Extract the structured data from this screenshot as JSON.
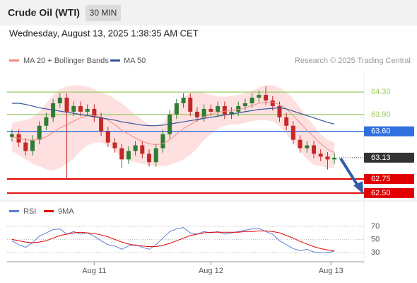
{
  "header": {
    "title": "Crude Oil (WTI)",
    "timeframe": "30 MIN",
    "date": "Wednesday, August 13, 2025 1:38:35 AM CET",
    "credit": "Research © 2025 Trading Central"
  },
  "chart_data": [
    {
      "type": "candlestick",
      "open": [
        63.5,
        63.55,
        63.4,
        63.25,
        63.45,
        63.7,
        63.85,
        64.1,
        64.2,
        63.95,
        64.05,
        63.95,
        64.0,
        63.85,
        63.6,
        63.4,
        63.3,
        63.1,
        63.25,
        63.35,
        63.2,
        63.05,
        63.3,
        63.55,
        63.9,
        64.1,
        64.2,
        63.95,
        63.85,
        64.0,
        63.95,
        64.05,
        63.9,
        63.95,
        64.05,
        64.1,
        64.2,
        64.25,
        64.15,
        64.05,
        63.85,
        63.7,
        63.45,
        63.3,
        63.35,
        63.2,
        63.15,
        63.1
      ],
      "high": [
        63.63,
        63.63,
        63.48,
        63.53,
        63.78,
        63.93,
        64.18,
        64.28,
        64.28,
        64.13,
        64.13,
        64.08,
        64.08,
        63.93,
        63.68,
        63.48,
        63.38,
        63.33,
        63.43,
        63.43,
        63.28,
        63.38,
        63.63,
        63.98,
        64.18,
        64.28,
        64.28,
        64.03,
        64.08,
        64.08,
        64.13,
        64.13,
        64.03,
        64.13,
        64.18,
        64.28,
        64.33,
        64.4,
        64.23,
        64.13,
        63.93,
        63.78,
        63.53,
        63.43,
        63.43,
        63.28,
        63.23,
        63.21
      ],
      "low": [
        63.42,
        63.32,
        63.17,
        63.17,
        63.37,
        63.62,
        63.77,
        64.02,
        62.75,
        63.87,
        63.87,
        63.87,
        63.77,
        63.52,
        63.32,
        63.22,
        62.95,
        63.02,
        63.17,
        63.12,
        62.97,
        62.97,
        63.22,
        63.47,
        63.82,
        64.02,
        63.87,
        63.77,
        63.77,
        63.87,
        63.87,
        63.82,
        63.82,
        63.87,
        63.97,
        64.02,
        64.12,
        64.07,
        63.97,
        63.77,
        63.62,
        63.37,
        63.22,
        63.22,
        63.12,
        63.07,
        62.92,
        63.02
      ],
      "close": [
        63.55,
        63.4,
        63.25,
        63.45,
        63.7,
        63.85,
        64.1,
        64.2,
        63.95,
        64.05,
        63.95,
        64.0,
        63.85,
        63.6,
        63.4,
        63.3,
        63.1,
        63.25,
        63.35,
        63.2,
        63.05,
        63.3,
        63.55,
        63.9,
        64.1,
        64.2,
        63.95,
        63.85,
        64.0,
        63.95,
        64.05,
        63.9,
        63.95,
        64.05,
        64.1,
        64.2,
        64.25,
        64.15,
        64.05,
        63.85,
        63.7,
        63.45,
        63.3,
        63.35,
        63.2,
        63.15,
        63.1,
        63.13
      ],
      "up_color": "#2e7d32",
      "down_color": "#c62828",
      "series": [
        {
          "name": "MA 20 + Bollinger Bands",
          "color": "#f28b82",
          "band_color": "#fde0df",
          "values": [
            63.5,
            63.48,
            63.45,
            63.44,
            63.46,
            63.5,
            63.58,
            63.66,
            63.72,
            63.78,
            63.84,
            63.88,
            63.88,
            63.85,
            63.8,
            63.72,
            63.62,
            63.55,
            63.48,
            63.42,
            63.38,
            63.36,
            63.38,
            63.45,
            63.55,
            63.65,
            63.72,
            63.8,
            63.86,
            63.9,
            63.94,
            63.96,
            63.97,
            63.99,
            64.02,
            64.06,
            64.1,
            64.12,
            64.12,
            64.08,
            64.0,
            63.88,
            63.75,
            63.62,
            63.5,
            63.38,
            63.28,
            63.22
          ],
          "upper": [
            63.75,
            63.78,
            63.8,
            63.85,
            63.95,
            64.1,
            64.25,
            64.35,
            64.4,
            64.42,
            64.42,
            64.4,
            64.35,
            64.3,
            64.25,
            64.18,
            64.1,
            64.0,
            63.9,
            63.8,
            63.72,
            63.7,
            63.75,
            63.9,
            64.05,
            64.2,
            64.28,
            64.3,
            64.28,
            64.25,
            64.22,
            64.22,
            64.23,
            64.25,
            64.28,
            64.32,
            64.38,
            64.42,
            64.42,
            64.38,
            64.3,
            64.18,
            64.02,
            63.85,
            63.7,
            63.55,
            63.45,
            63.4
          ],
          "lower": [
            63.25,
            63.18,
            63.1,
            63.02,
            62.98,
            62.92,
            62.9,
            62.95,
            63.02,
            63.12,
            63.25,
            63.35,
            63.4,
            63.4,
            63.35,
            63.25,
            63.14,
            63.08,
            63.05,
            63.02,
            63.0,
            62.98,
            62.98,
            63.0,
            63.05,
            63.1,
            63.18,
            63.3,
            63.45,
            63.55,
            63.65,
            63.7,
            63.72,
            63.73,
            63.75,
            63.78,
            63.8,
            63.8,
            63.78,
            63.7,
            63.55,
            63.4,
            63.25,
            63.1,
            63.0,
            62.98,
            62.95,
            62.95
          ]
        },
        {
          "name": "MA 50",
          "color": "#34559b",
          "values": [
            64.1,
            64.1,
            64.08,
            64.05,
            64.02,
            64.0,
            63.98,
            63.96,
            63.94,
            63.92,
            63.9,
            63.88,
            63.86,
            63.84,
            63.82,
            63.8,
            63.77,
            63.75,
            63.73,
            63.71,
            63.7,
            63.7,
            63.71,
            63.73,
            63.75,
            63.77,
            63.79,
            63.81,
            63.83,
            63.85,
            63.87,
            63.89,
            63.91,
            63.93,
            63.95,
            63.97,
            63.99,
            64.0,
            64.01,
            64.02,
            64.0,
            63.96,
            63.92,
            63.88,
            63.84,
            63.8,
            63.76,
            63.73
          ]
        }
      ],
      "levels": [
        {
          "value": 64.3,
          "label": "64.30",
          "color": "#9ccc65",
          "style": "text"
        },
        {
          "value": 63.9,
          "label": "63.90",
          "color": "#9ccc65",
          "style": "text"
        },
        {
          "value": 63.6,
          "label": "63.60",
          "color": "#2f6fe0",
          "style": "box"
        },
        {
          "value": 63.13,
          "label": "63.13",
          "color": "#333333",
          "style": "dotted"
        },
        {
          "value": 62.75,
          "label": "62.75",
          "color": "#e00000",
          "style": "box"
        },
        {
          "value": 62.5,
          "label": "62.50",
          "color": "#e00000",
          "style": "box"
        }
      ],
      "ylim": [
        62.41,
        64.68
      ],
      "xlim": [
        -0.5,
        47.5
      ],
      "xticks": [
        {
          "value": 12,
          "label": "Aug 11"
        },
        {
          "value": 29,
          "label": "Aug 12"
        },
        {
          "value": 46.5,
          "label": "Aug 13"
        }
      ]
    },
    {
      "type": "line",
      "series": [
        {
          "name": "RSI",
          "color": "#5b7fd6",
          "values": [
            48,
            42,
            38,
            45,
            55,
            60,
            65,
            66,
            58,
            62,
            58,
            60,
            55,
            48,
            42,
            40,
            35,
            40,
            42,
            38,
            35,
            42,
            52,
            62,
            66,
            68,
            60,
            58,
            62,
            60,
            62,
            58,
            60,
            62,
            64,
            66,
            67,
            62,
            58,
            48,
            42,
            36,
            33,
            35,
            31,
            30,
            30,
            32
          ]
        },
        {
          "name": "9MA",
          "color": "#e00000",
          "values": [
            50,
            48,
            46,
            45,
            46,
            48,
            52,
            56,
            58,
            60,
            61,
            60,
            59,
            57,
            54,
            50,
            46,
            43,
            41,
            40,
            39,
            39,
            41,
            44,
            48,
            52,
            56,
            58,
            60,
            61,
            61,
            61,
            61,
            61,
            62,
            62,
            63,
            63,
            62,
            60,
            56,
            52,
            47,
            43,
            39,
            36,
            34,
            33
          ]
        }
      ],
      "ylim": [
        16,
        86
      ],
      "yticks": [
        70,
        50,
        30
      ],
      "xlim": [
        -0.5,
        47.5
      ]
    }
  ]
}
